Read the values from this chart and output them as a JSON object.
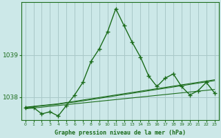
{
  "title": "Graphe pression niveau de la mer (hPa)",
  "background_color": "#cce8e8",
  "plot_bg_color": "#cce8e8",
  "grid_color": "#a8c8c8",
  "line_color": "#1a6b1a",
  "x_ticks": [
    0,
    1,
    2,
    3,
    4,
    5,
    6,
    7,
    8,
    9,
    10,
    11,
    12,
    13,
    14,
    15,
    16,
    17,
    18,
    19,
    20,
    21,
    22,
    23
  ],
  "ylim": [
    1037.45,
    1040.25
  ],
  "yticks": [
    1038,
    1039
  ],
  "main_series": [
    1037.75,
    1037.75,
    1037.6,
    1037.65,
    1037.55,
    1037.8,
    1038.05,
    1038.35,
    1038.85,
    1039.15,
    1039.55,
    1040.1,
    1039.7,
    1039.3,
    1038.95,
    1038.5,
    1038.25,
    1038.45,
    1038.55,
    1038.25,
    1038.05,
    1038.15,
    1038.35,
    1038.1
  ],
  "trend_line1": [
    1037.72,
    1037.74,
    1037.76,
    1037.78,
    1037.8,
    1037.82,
    1037.84,
    1037.86,
    1037.88,
    1037.9,
    1037.92,
    1037.94,
    1037.96,
    1037.98,
    1038.0,
    1038.02,
    1038.04,
    1038.06,
    1038.08,
    1038.1,
    1038.12,
    1038.14,
    1038.16,
    1038.18
  ],
  "trend_line2": [
    1037.75,
    1037.77,
    1037.79,
    1037.81,
    1037.83,
    1037.86,
    1037.88,
    1037.91,
    1037.94,
    1037.97,
    1038.0,
    1038.03,
    1038.06,
    1038.09,
    1038.12,
    1038.15,
    1038.18,
    1038.21,
    1038.24,
    1038.27,
    1038.3,
    1038.33,
    1038.36,
    1038.39
  ],
  "trend_line3": [
    1037.76,
    1037.78,
    1037.8,
    1037.82,
    1037.84,
    1037.87,
    1037.9,
    1037.93,
    1037.96,
    1037.99,
    1038.02,
    1038.05,
    1038.08,
    1038.11,
    1038.14,
    1038.17,
    1038.2,
    1038.23,
    1038.26,
    1038.29,
    1038.32,
    1038.35,
    1038.38,
    1038.41
  ]
}
